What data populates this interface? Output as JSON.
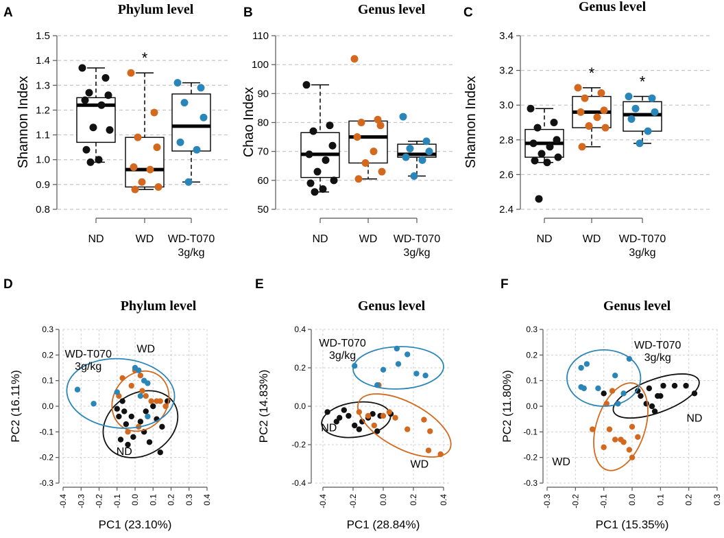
{
  "colors": {
    "ND": "#111111",
    "WD": "#d2691e",
    "T070": "#2a86b8"
  },
  "chart_data": [
    {
      "type": "box",
      "panel": "A",
      "title": "Phylum level",
      "ylabel": "Shannon Index",
      "ylim": [
        0.8,
        1.5
      ],
      "yticks": [
        "0.8",
        "0.9",
        "1.0",
        "1.1",
        "1.2",
        "1.3",
        "1.4",
        "1.5"
      ],
      "categories": [
        "ND",
        "WD",
        "WD-T070 3g/kg"
      ],
      "category_lines": [
        [
          "ND"
        ],
        [
          "WD"
        ],
        [
          "WD-T070",
          "3g/kg"
        ]
      ],
      "stats": [
        {
          "q1": 1.07,
          "median": 1.22,
          "q3": 1.25,
          "min": 0.99,
          "max": 1.37
        },
        {
          "q1": 0.89,
          "median": 0.96,
          "q3": 1.09,
          "min": 0.88,
          "max": 1.35
        },
        {
          "q1": 1.035,
          "median": 1.135,
          "q3": 1.265,
          "min": 0.91,
          "max": 1.31
        }
      ],
      "points": [
        [
          1.37,
          1.33,
          1.27,
          1.26,
          1.24,
          1.22,
          1.13,
          1.12,
          1.04,
          1.0,
          0.99
        ],
        [
          1.35,
          1.19,
          1.09,
          1.05,
          0.97,
          0.96,
          0.91,
          0.89,
          0.88
        ],
        [
          1.31,
          1.29,
          1.23,
          1.17,
          1.07,
          1.04,
          0.91
        ]
      ],
      "significance": [
        "",
        "*",
        ""
      ]
    },
    {
      "type": "box",
      "panel": "B",
      "title": "Genus level",
      "ylabel": "Chao Index",
      "ylim": [
        50,
        110
      ],
      "yticks": [
        "50",
        "60",
        "70",
        "80",
        "90",
        "100",
        "110"
      ],
      "categories": [
        "ND",
        "WD",
        "WD-T070 3g/kg"
      ],
      "category_lines": [
        [
          "ND"
        ],
        [
          "WD"
        ],
        [
          "WD-T070",
          "3g/kg"
        ]
      ],
      "stats": [
        {
          "q1": 61,
          "median": 69,
          "q3": 76.5,
          "min": 56,
          "max": 93
        },
        {
          "q1": 66,
          "median": 75,
          "q3": 80.5,
          "min": 60.5,
          "max": 80.5
        },
        {
          "q1": 68,
          "median": 69,
          "q3": 72.5,
          "min": 61.5,
          "max": 73.5
        }
      ],
      "points": [
        [
          93,
          79,
          77,
          72,
          69,
          67,
          63,
          60,
          59,
          57,
          56
        ],
        [
          102,
          81,
          80,
          79,
          75,
          70,
          66,
          63,
          60.5
        ],
        [
          82,
          73.5,
          71,
          70,
          68,
          67,
          61.5
        ]
      ],
      "significance": [
        "",
        "",
        ""
      ]
    },
    {
      "type": "box",
      "panel": "C",
      "title": "Genus level",
      "ylabel": "Shannon Index",
      "ylim": [
        2.4,
        3.4
      ],
      "yticks": [
        "2.4",
        "2.6",
        "2.8",
        "3.0",
        "3.2",
        "3.4"
      ],
      "categories": [
        "ND",
        "WD",
        "WD-T070 3g/kg"
      ],
      "category_lines": [
        [
          "ND"
        ],
        [
          "WD"
        ],
        [
          "WD-T070",
          "3g/kg"
        ]
      ],
      "stats": [
        {
          "q1": 2.7,
          "median": 2.78,
          "q3": 2.86,
          "min": 2.67,
          "max": 2.98
        },
        {
          "q1": 2.87,
          "median": 2.96,
          "q3": 3.05,
          "min": 2.76,
          "max": 3.1
        },
        {
          "q1": 2.85,
          "median": 2.945,
          "q3": 3.02,
          "min": 2.78,
          "max": 3.05
        }
      ],
      "points": [
        [
          2.98,
          2.9,
          2.87,
          2.8,
          2.78,
          2.76,
          2.72,
          2.7,
          2.68,
          2.67,
          2.46
        ],
        [
          3.1,
          3.07,
          3.04,
          2.97,
          2.96,
          2.93,
          2.88,
          2.87,
          2.76
        ],
        [
          3.05,
          3.04,
          2.98,
          2.96,
          2.92,
          2.85,
          2.78
        ]
      ],
      "significance": [
        "",
        "*",
        "*"
      ]
    },
    {
      "type": "scatter",
      "panel": "D",
      "title": "Phylum level",
      "xlabel": "PC1 (23.10%)",
      "ylabel": "PC2 (16.11%)",
      "xlim": [
        -0.4,
        0.4
      ],
      "ylim": [
        -0.3,
        0.3
      ],
      "xticks": [
        "-0.4",
        "-0.3",
        "-0.2",
        "-0.1",
        "0.0",
        "0.1",
        "0.2",
        "0.3",
        "0.4"
      ],
      "yticks": [
        "-0.3",
        "-0.2",
        "-0.1",
        "0.0",
        "0.1",
        "0.2",
        "0.3"
      ],
      "groups": [
        {
          "name": "ND",
          "label_lines": [
            "ND"
          ],
          "points": [
            [
              -0.06,
              -0.02
            ],
            [
              -0.09,
              -0.04
            ],
            [
              -0.02,
              -0.04
            ],
            [
              -0.05,
              -0.07
            ],
            [
              0.03,
              -0.06
            ],
            [
              0.06,
              -0.02
            ],
            [
              0.1,
              0.0
            ],
            [
              0.12,
              -0.05
            ],
            [
              0.15,
              -0.08
            ],
            [
              0.18,
              0.02
            ],
            [
              -0.08,
              -0.13
            ],
            [
              -0.04,
              -0.15
            ],
            [
              -0.01,
              -0.12
            ],
            [
              0.05,
              -0.1
            ],
            [
              0.08,
              -0.14
            ],
            [
              0.14,
              -0.18
            ],
            [
              -0.07,
              0.02
            ],
            [
              -0.1,
              -0.01
            ]
          ],
          "ellipse": {
            "cx": 0.03,
            "cy": -0.07,
            "rx": 0.22,
            "ry": 0.12,
            "angle": -32
          }
        },
        {
          "name": "WD",
          "label_lines": [
            "WD"
          ],
          "points": [
            [
              -0.07,
              0.11
            ],
            [
              0.0,
              0.14
            ],
            [
              -0.02,
              0.08
            ],
            [
              0.03,
              0.12
            ],
            [
              0.06,
              0.04
            ],
            [
              0.09,
              0.02
            ],
            [
              0.12,
              0.02
            ],
            [
              0.14,
              0.02
            ],
            [
              0.17,
              0.0
            ],
            [
              -0.09,
              0.04
            ],
            [
              -0.04,
              -0.1
            ],
            [
              0.02,
              -0.08
            ],
            [
              0.04,
              0.06
            ]
          ],
          "ellipse": {
            "cx": 0.03,
            "cy": 0.02,
            "rx": 0.175,
            "ry": 0.105,
            "angle": -55
          }
        },
        {
          "name": "WD-T070 3g/kg",
          "label_lines": [
            "WD-T070",
            "3g/kg"
          ],
          "points": [
            [
              -0.32,
              0.065
            ],
            [
              -0.23,
              0.01
            ],
            [
              -0.1,
              0.055
            ],
            [
              0.0,
              0.15
            ],
            [
              0.02,
              0.14
            ],
            [
              0.03,
              0.04
            ],
            [
              0.05,
              0.1
            ],
            [
              0.07,
              0.09
            ],
            [
              0.07,
              -0.04
            ]
          ],
          "ellipse": {
            "cx": -0.08,
            "cy": 0.05,
            "rx": 0.3,
            "ry": 0.135,
            "angle": 5
          }
        }
      ],
      "label_positions": [
        [
          -0.06,
          -0.19
        ],
        [
          0.06,
          0.21
        ],
        [
          -0.26,
          0.19
        ]
      ]
    },
    {
      "type": "scatter",
      "panel": "E",
      "title": "Genus level",
      "xlabel": "PC1 (28.84%)",
      "ylabel": "PC2 (14.83%)",
      "xlim": [
        -0.45,
        0.45
      ],
      "ylim": [
        -0.4,
        0.4
      ],
      "xticks": [
        "-0.4",
        "-0.2",
        "0.0",
        "0.2",
        "0.4"
      ],
      "yticks": [
        "-0.4",
        "-0.2",
        "0.0",
        "0.2",
        "0.4"
      ],
      "groups": [
        {
          "name": "ND",
          "label_lines": [
            "ND"
          ],
          "points": [
            [
              -0.37,
              -0.03
            ],
            [
              -0.31,
              -0.08
            ],
            [
              -0.29,
              -0.06
            ],
            [
              -0.26,
              -0.02
            ],
            [
              -0.23,
              -0.05
            ],
            [
              -0.19,
              -0.1
            ],
            [
              -0.16,
              -0.12
            ],
            [
              -0.14,
              -0.08
            ],
            [
              -0.1,
              -0.06
            ],
            [
              -0.07,
              -0.04
            ],
            [
              -0.04,
              -0.13
            ],
            [
              -0.02,
              -0.05
            ],
            [
              0.05,
              -0.04
            ]
          ],
          "ellipse": {
            "cx": -0.18,
            "cy": -0.07,
            "rx": 0.23,
            "ry": 0.09,
            "angle": -8
          }
        },
        {
          "name": "WD",
          "label_lines": [
            "WD"
          ],
          "points": [
            [
              -0.16,
              -0.03
            ],
            [
              -0.1,
              -0.05
            ],
            [
              -0.06,
              -0.1
            ],
            [
              0.0,
              -0.05
            ],
            [
              0.04,
              -0.03
            ],
            [
              0.08,
              -0.06
            ],
            [
              0.16,
              -0.12
            ],
            [
              0.27,
              -0.07
            ],
            [
              0.31,
              -0.13
            ],
            [
              0.3,
              -0.23
            ],
            [
              0.38,
              -0.25
            ],
            [
              -0.03,
              0.11
            ]
          ],
          "ellipse": {
            "cx": 0.14,
            "cy": -0.1,
            "rx": 0.34,
            "ry": 0.12,
            "angle": 28
          }
        },
        {
          "name": "WD-T070 3g/kg",
          "label_lines": [
            "WD-T070",
            "3g/kg"
          ],
          "points": [
            [
              -0.19,
              0.21
            ],
            [
              -0.04,
              0.11
            ],
            [
              0.0,
              0.19
            ],
            [
              0.09,
              0.3
            ],
            [
              0.1,
              0.22
            ],
            [
              0.16,
              0.27
            ],
            [
              0.22,
              0.17
            ],
            [
              0.28,
              0.16
            ]
          ],
          "ellipse": {
            "cx": 0.1,
            "cy": 0.2,
            "rx": 0.3,
            "ry": 0.11,
            "angle": -2
          }
        }
      ],
      "label_positions": [
        [
          -0.36,
          -0.13
        ],
        [
          0.24,
          -0.32
        ],
        [
          -0.27,
          0.31
        ]
      ]
    },
    {
      "type": "scatter",
      "panel": "F",
      "title": "Genus level",
      "xlabel": "PC1 (15.35%)",
      "ylabel": "PC2 (11.80%)",
      "xlim": [
        -0.3,
        0.3
      ],
      "ylim": [
        -0.3,
        0.3
      ],
      "xticks": [
        "-0.3",
        "-0.2",
        "-0.1",
        "0.0",
        "0.1",
        "0.2",
        "0.3"
      ],
      "yticks": [
        "-0.3",
        "-0.2",
        "-0.1",
        "0.0",
        "0.1",
        "0.2",
        "0.3"
      ],
      "groups": [
        {
          "name": "ND",
          "label_lines": [
            "ND"
          ],
          "points": [
            [
              0.02,
              0.06
            ],
            [
              0.03,
              0.04
            ],
            [
              0.06,
              0.07
            ],
            [
              0.05,
              0.01
            ],
            [
              0.07,
              0.0
            ],
            [
              0.08,
              -0.02
            ],
            [
              0.09,
              0.04
            ],
            [
              0.11,
              0.08
            ],
            [
              0.15,
              0.08
            ],
            [
              0.19,
              0.08
            ],
            [
              0.22,
              0.05
            ],
            [
              0.1,
              0.04
            ],
            [
              -0.1,
              0.05
            ]
          ],
          "ellipse": {
            "cx": 0.085,
            "cy": 0.04,
            "rx": 0.16,
            "ry": 0.065,
            "angle": -20
          }
        },
        {
          "name": "WD",
          "label_lines": [
            "WD"
          ],
          "points": [
            [
              -0.14,
              -0.09
            ],
            [
              -0.1,
              -0.16
            ],
            [
              -0.08,
              -0.09
            ],
            [
              -0.06,
              -0.13
            ],
            [
              -0.04,
              -0.13
            ],
            [
              -0.03,
              -0.14
            ],
            [
              -0.01,
              -0.17
            ],
            [
              0.0,
              -0.2
            ],
            [
              0.0,
              -0.08
            ],
            [
              0.02,
              -0.12
            ],
            [
              -0.07,
              0.06
            ],
            [
              -0.09,
              0.01
            ]
          ],
          "ellipse": {
            "cx": -0.04,
            "cy": -0.08,
            "rx": 0.16,
            "ry": 0.095,
            "angle": -72
          }
        },
        {
          "name": "WD-T070 3g/kg",
          "label_lines": [
            "WD-T070",
            "3g/kg"
          ],
          "points": [
            [
              -0.18,
              0.15
            ],
            [
              -0.16,
              0.165
            ],
            [
              -0.18,
              0.075
            ],
            [
              -0.17,
              0.07
            ],
            [
              -0.12,
              0.07
            ],
            [
              -0.06,
              0.12
            ],
            [
              -0.03,
              0.05
            ],
            [
              -0.01,
              0.185
            ],
            [
              -0.05,
              0.01
            ]
          ],
          "ellipse": {
            "cx": -0.1,
            "cy": 0.11,
            "rx": 0.13,
            "ry": 0.11,
            "angle": 0
          }
        }
      ],
      "label_positions": [
        [
          0.22,
          -0.06
        ],
        [
          -0.25,
          -0.23
        ],
        [
          0.09,
          0.225
        ]
      ]
    }
  ]
}
